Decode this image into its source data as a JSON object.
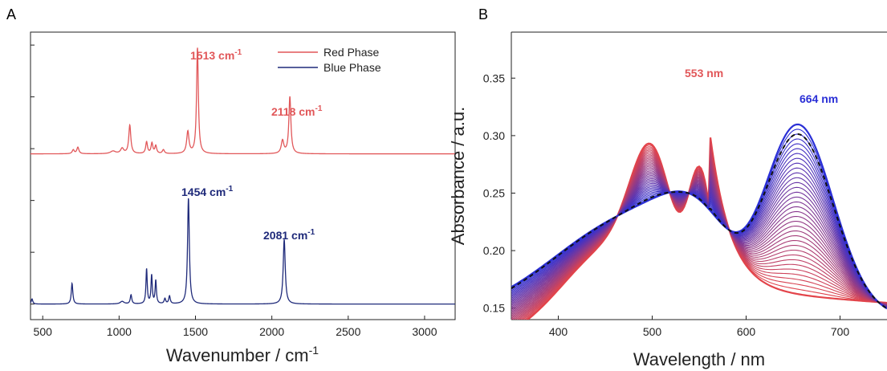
{
  "chart_data": [
    {
      "panel": "A",
      "type": "line",
      "xlabel": "Wavenumber / cm",
      "xlabel_sup": "-1",
      "ylabel": "",
      "xlim": [
        420,
        3200
      ],
      "ylim": [
        -0.6,
        10.5
      ],
      "xticks": [
        500,
        1000,
        1500,
        2000,
        2500,
        3000
      ],
      "ytick_labels_shown": false,
      "legend": {
        "placement": "top-right",
        "entries": [
          {
            "name": "Red Phase",
            "color": "#e15759"
          },
          {
            "name": "Blue Phase",
            "color": "#1f2a7a"
          }
        ]
      },
      "series": [
        {
          "name": "Red Phase",
          "color": "#e15759",
          "baseline": 5.8,
          "peaks": [
            [
              700,
              0.15,
              8
            ],
            [
              730,
              0.25,
              8
            ],
            [
              960,
              0.1,
              20
            ],
            [
              1020,
              0.2,
              12
            ],
            [
              1070,
              1.1,
              8
            ],
            [
              1180,
              0.45,
              7
            ],
            [
              1215,
              0.4,
              7
            ],
            [
              1240,
              0.3,
              7
            ],
            [
              1290,
              0.15,
              8
            ],
            [
              1450,
              0.85,
              9
            ],
            [
              1513,
              4.1,
              7
            ],
            [
              2070,
              0.5,
              10
            ],
            [
              2118,
              2.2,
              8
            ]
          ]
        },
        {
          "name": "Blue Phase",
          "color": "#1f2a7a",
          "baseline": 0.0,
          "peaks": [
            [
              430,
              0.2,
              6
            ],
            [
              692,
              0.8,
              6
            ],
            [
              1020,
              0.1,
              15
            ],
            [
              1078,
              0.35,
              6
            ],
            [
              1180,
              1.35,
              5
            ],
            [
              1213,
              1.1,
              5
            ],
            [
              1240,
              0.9,
              5
            ],
            [
              1300,
              0.2,
              6
            ],
            [
              1330,
              0.3,
              6
            ],
            [
              1454,
              4.1,
              7
            ],
            [
              2081,
              2.5,
              8
            ]
          ]
        }
      ],
      "annotations": [
        {
          "text": "1513 cm",
          "sup": "-1",
          "x": 1513,
          "color": "#e15759"
        },
        {
          "text": "2118 cm",
          "sup": "-1",
          "x": 2118,
          "color": "#e15759"
        },
        {
          "text": "1454 cm",
          "sup": "-1",
          "x": 1454,
          "color": "#1f2a7a"
        },
        {
          "text": "2081 cm",
          "sup": "-1",
          "x": 2081,
          "color": "#1f2a7a"
        }
      ]
    },
    {
      "panel": "B",
      "type": "line",
      "xlabel": "Wavelength / nm",
      "ylabel": "Absorbance / a.u.",
      "xlim": [
        350,
        750
      ],
      "ylim": [
        0.14,
        0.39
      ],
      "xticks": [
        400,
        500,
        600,
        700
      ],
      "yticks": [
        0.15,
        0.2,
        0.25,
        0.3,
        0.35
      ],
      "ytick_labels": [
        "0.15",
        "0.20",
        "0.25",
        "0.30",
        "0.35"
      ],
      "series_count": 36,
      "color_start": "#e3444a",
      "color_end": "#2a2fd6",
      "endpoint_spectra": {
        "red_phase_peaks_nm": [
          500,
          550
        ],
        "blue_phase_peak_nm": 660
      },
      "dashed_trace": {
        "style": "dashed",
        "color": "#111111"
      },
      "annotations": [
        {
          "text": "553 nm",
          "x": 553,
          "color": "#e15759"
        },
        {
          "text": "664 nm",
          "x": 664,
          "color": "#2a2fd6"
        }
      ]
    }
  ]
}
